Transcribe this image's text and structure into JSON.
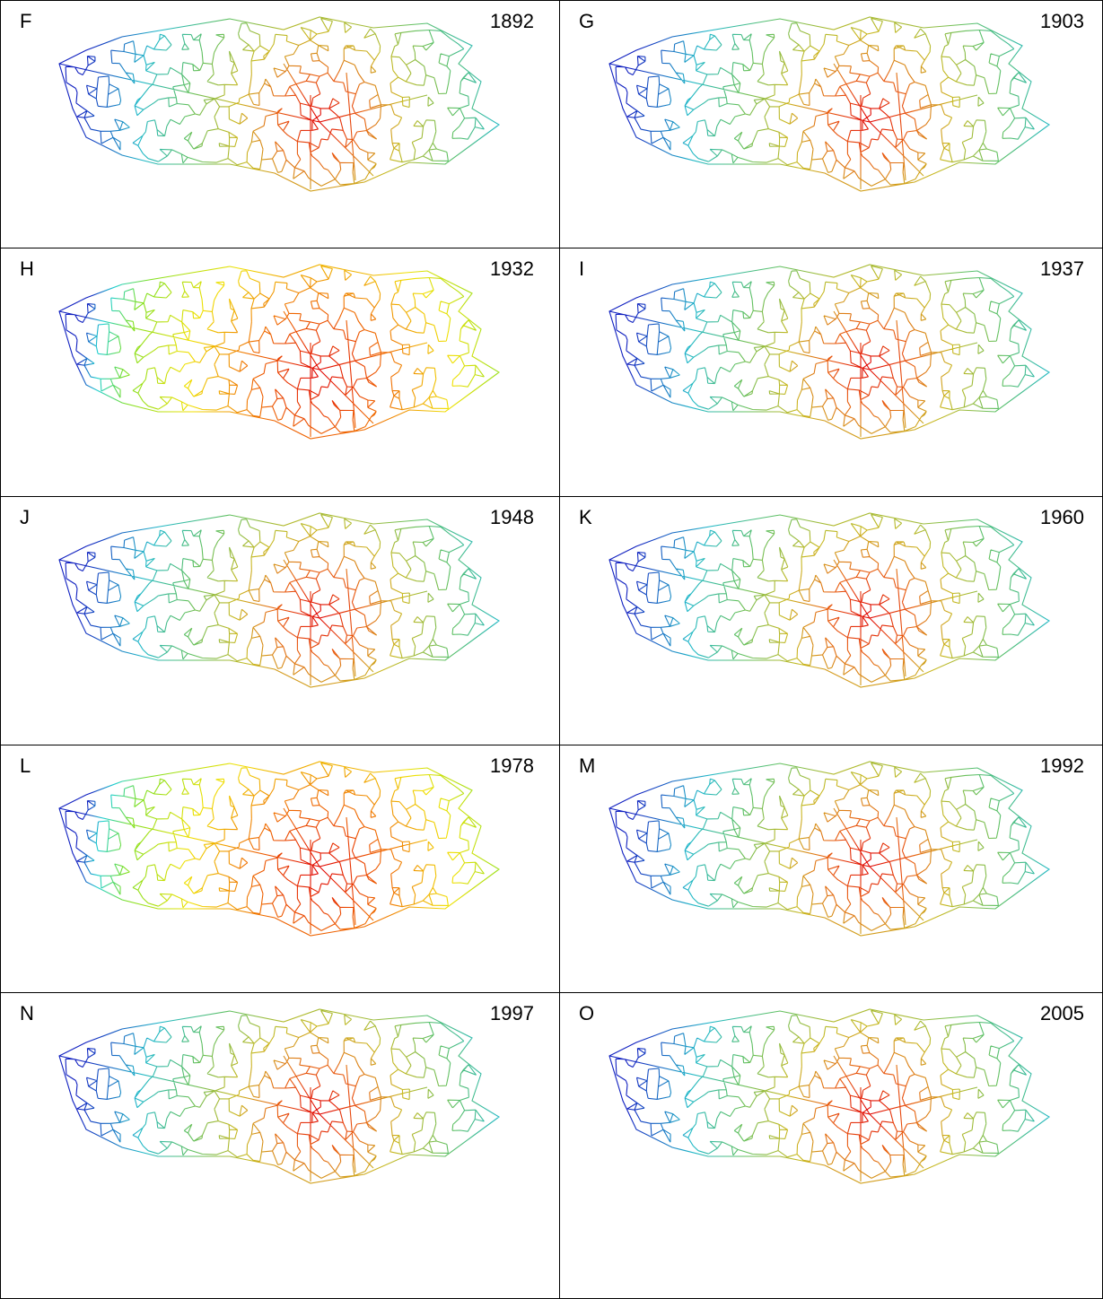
{
  "panels": [
    {
      "letter": "F",
      "year": "1892"
    },
    {
      "letter": "G",
      "year": "1903"
    },
    {
      "letter": "H",
      "year": "1932"
    },
    {
      "letter": "I",
      "year": "1937"
    },
    {
      "letter": "J",
      "year": "1948"
    },
    {
      "letter": "K",
      "year": "1960"
    },
    {
      "letter": "L",
      "year": "1978"
    },
    {
      "letter": "M",
      "year": "1992"
    },
    {
      "letter": "N",
      "year": "1997"
    },
    {
      "letter": "O",
      "year": "2005"
    }
  ]
}
